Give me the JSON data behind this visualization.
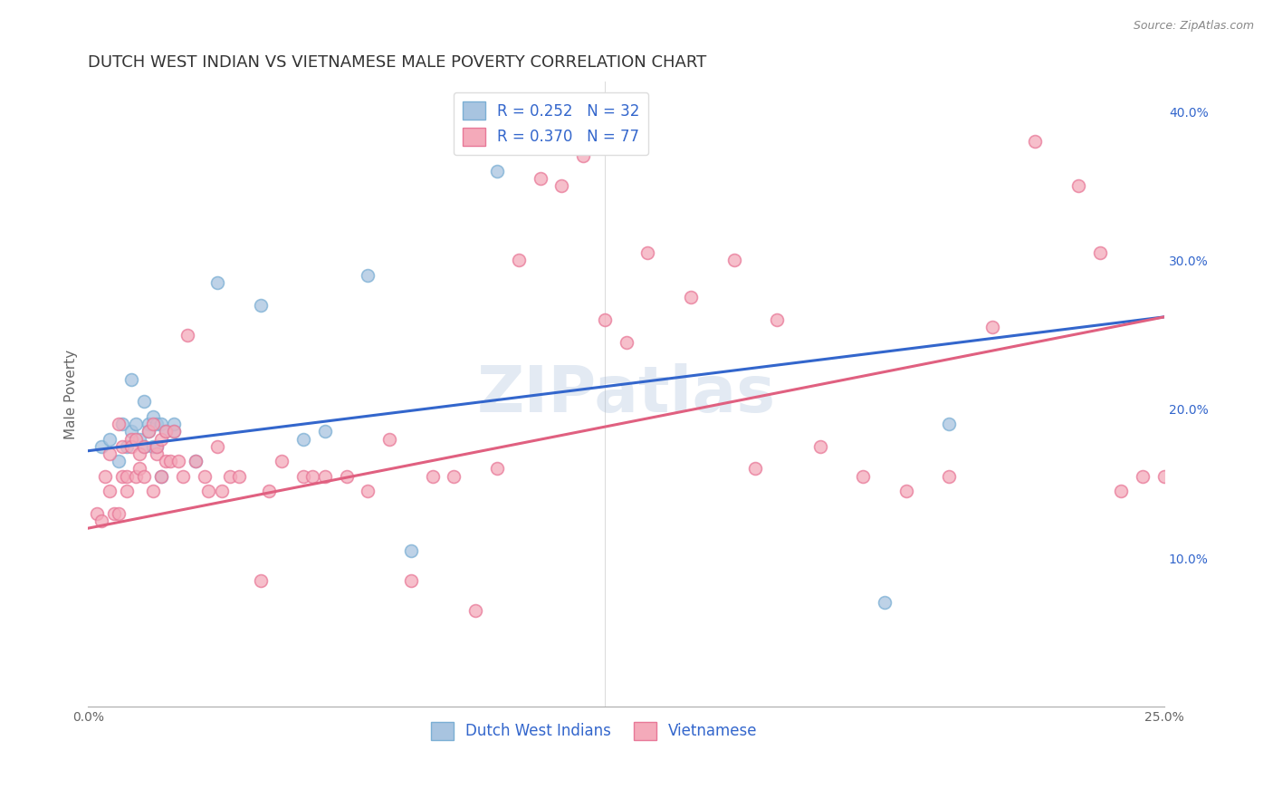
{
  "title": "DUTCH WEST INDIAN VS VIETNAMESE MALE POVERTY CORRELATION CHART",
  "source": "Source: ZipAtlas.com",
  "ylabel": "Male Poverty",
  "watermark": "ZIPatlas",
  "xlim": [
    0.0,
    0.25
  ],
  "ylim": [
    0.0,
    0.42
  ],
  "x_tick_positions": [
    0.0,
    0.05,
    0.1,
    0.15,
    0.2,
    0.25
  ],
  "x_tick_labels": [
    "0.0%",
    "",
    "",
    "",
    "",
    "25.0%"
  ],
  "y_tick_positions": [
    0.1,
    0.2,
    0.3,
    0.4
  ],
  "y_tick_labels": [
    "10.0%",
    "20.0%",
    "30.0%",
    "40.0%"
  ],
  "blue_R": 0.252,
  "blue_N": 32,
  "pink_R": 0.37,
  "pink_N": 77,
  "blue_face_color": "#A8C4E0",
  "blue_edge_color": "#7BAFD4",
  "pink_face_color": "#F4AABA",
  "pink_edge_color": "#E87898",
  "blue_line_color": "#3366CC",
  "pink_line_color": "#E06080",
  "legend_text_color": "#3366CC",
  "blue_scatter_x": [
    0.003,
    0.005,
    0.007,
    0.008,
    0.009,
    0.01,
    0.01,
    0.011,
    0.012,
    0.013,
    0.013,
    0.014,
    0.014,
    0.015,
    0.015,
    0.016,
    0.016,
    0.017,
    0.017,
    0.018,
    0.02,
    0.02,
    0.025,
    0.03,
    0.04,
    0.05,
    0.055,
    0.065,
    0.075,
    0.095,
    0.185,
    0.2
  ],
  "blue_scatter_y": [
    0.175,
    0.18,
    0.165,
    0.19,
    0.175,
    0.185,
    0.22,
    0.19,
    0.18,
    0.175,
    0.205,
    0.19,
    0.185,
    0.175,
    0.195,
    0.175,
    0.19,
    0.155,
    0.19,
    0.185,
    0.185,
    0.19,
    0.165,
    0.285,
    0.27,
    0.18,
    0.185,
    0.29,
    0.105,
    0.36,
    0.07,
    0.19
  ],
  "blue_line_x": [
    0.0,
    0.25
  ],
  "blue_line_y": [
    0.172,
    0.262
  ],
  "pink_scatter_x": [
    0.002,
    0.003,
    0.004,
    0.005,
    0.005,
    0.006,
    0.007,
    0.007,
    0.008,
    0.008,
    0.009,
    0.009,
    0.01,
    0.01,
    0.011,
    0.011,
    0.012,
    0.012,
    0.013,
    0.013,
    0.014,
    0.015,
    0.015,
    0.016,
    0.016,
    0.017,
    0.017,
    0.018,
    0.018,
    0.019,
    0.02,
    0.021,
    0.022,
    0.023,
    0.025,
    0.027,
    0.028,
    0.03,
    0.031,
    0.033,
    0.035,
    0.04,
    0.042,
    0.045,
    0.05,
    0.052,
    0.055,
    0.06,
    0.065,
    0.07,
    0.075,
    0.08,
    0.085,
    0.09,
    0.095,
    0.1,
    0.105,
    0.11,
    0.115,
    0.12,
    0.125,
    0.13,
    0.14,
    0.15,
    0.155,
    0.16,
    0.17,
    0.18,
    0.19,
    0.2,
    0.21,
    0.22,
    0.23,
    0.235,
    0.24,
    0.245,
    0.25
  ],
  "pink_scatter_y": [
    0.13,
    0.125,
    0.155,
    0.17,
    0.145,
    0.13,
    0.19,
    0.13,
    0.155,
    0.175,
    0.145,
    0.155,
    0.18,
    0.175,
    0.18,
    0.155,
    0.17,
    0.16,
    0.175,
    0.155,
    0.185,
    0.19,
    0.145,
    0.17,
    0.175,
    0.155,
    0.18,
    0.185,
    0.165,
    0.165,
    0.185,
    0.165,
    0.155,
    0.25,
    0.165,
    0.155,
    0.145,
    0.175,
    0.145,
    0.155,
    0.155,
    0.085,
    0.145,
    0.165,
    0.155,
    0.155,
    0.155,
    0.155,
    0.145,
    0.18,
    0.085,
    0.155,
    0.155,
    0.065,
    0.16,
    0.3,
    0.355,
    0.35,
    0.37,
    0.26,
    0.245,
    0.305,
    0.275,
    0.3,
    0.16,
    0.26,
    0.175,
    0.155,
    0.145,
    0.155,
    0.255,
    0.38,
    0.35,
    0.305,
    0.145,
    0.155,
    0.155
  ],
  "pink_line_x": [
    0.0,
    0.25
  ],
  "pink_line_y": [
    0.12,
    0.262
  ],
  "background_color": "#FFFFFF",
  "grid_color": "#CCCCCC",
  "title_fontsize": 13,
  "axis_label_fontsize": 11,
  "tick_fontsize": 10,
  "legend_fontsize": 12,
  "watermark_fontsize": 52,
  "watermark_color": "#9BB5D5",
  "watermark_alpha": 0.28,
  "center_line_x": 0.12,
  "marker_size": 100
}
